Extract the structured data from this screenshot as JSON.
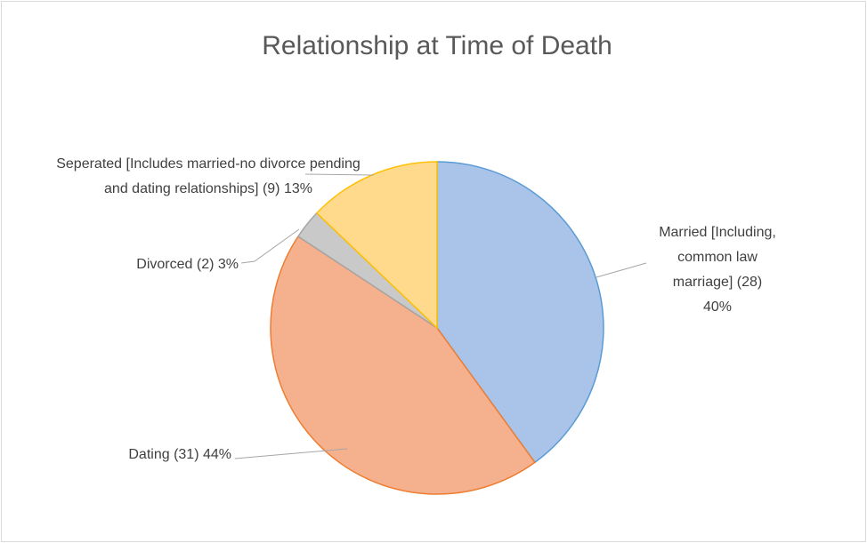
{
  "chart_data": {
    "type": "pie",
    "title": "Relationship at Time of Death",
    "categories": [
      "Married [Including, common law marriage]",
      "Dating",
      "Divorced",
      "Seperated [Includes married-no divorce pending and dating relationships]"
    ],
    "values": [
      28,
      31,
      2,
      9
    ],
    "value_labels": [
      "(28) 40%",
      "(31) 44%",
      "(2) 3%",
      "(9) 13%"
    ],
    "colors": [
      "#a9c4e8",
      "#f5b08e",
      "#c9c9c9",
      "#ffd98c"
    ],
    "edge_colors": [
      "#5b9bd5",
      "#ed7d31",
      "#a5a5a5",
      "#ffc000"
    ]
  }
}
